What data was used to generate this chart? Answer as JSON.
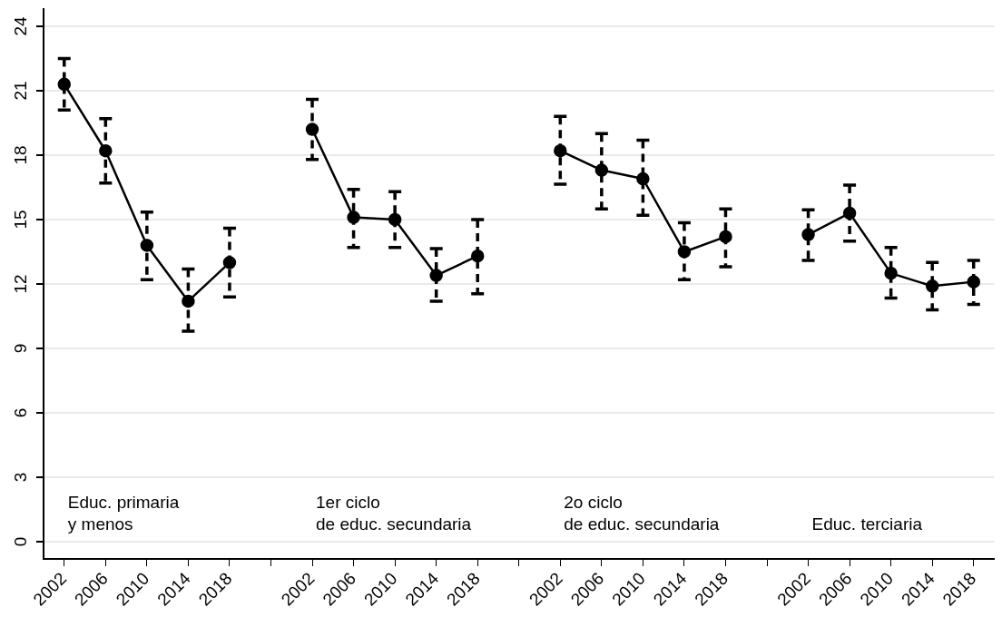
{
  "chart_data": {
    "type": "line",
    "categories": [
      "2002",
      "2006",
      "2010",
      "2014",
      "2018",
      null,
      "2002",
      "2006",
      "2010",
      "2014",
      "2018",
      null,
      "2002",
      "2006",
      "2010",
      "2014",
      "2018",
      null,
      "2002",
      "2006",
      "2010",
      "2014",
      "2018"
    ],
    "series": [
      {
        "color": "#000000",
        "values": [
          21.3,
          18.2,
          13.8,
          11.2,
          13.0,
          null,
          19.2,
          15.1,
          15.0,
          12.4,
          13.3,
          null,
          18.2,
          17.3,
          16.9,
          13.5,
          14.2,
          null,
          14.3,
          15.3,
          12.5,
          11.9,
          12.1
        ],
        "errors": [
          [
            20.1,
            22.5
          ],
          [
            16.7,
            19.7
          ],
          [
            12.2,
            15.35
          ],
          [
            9.8,
            12.7
          ],
          [
            11.4,
            14.6
          ],
          null,
          [
            17.8,
            20.6
          ],
          [
            13.7,
            16.4
          ],
          [
            13.7,
            16.3
          ],
          [
            11.2,
            13.65
          ],
          [
            11.55,
            15.0
          ],
          null,
          [
            16.65,
            19.8
          ],
          [
            15.5,
            19.0
          ],
          [
            15.2,
            18.7
          ],
          [
            12.2,
            14.85
          ],
          [
            12.8,
            15.5
          ],
          null,
          [
            13.1,
            15.45
          ],
          [
            14.0,
            16.6
          ],
          [
            11.35,
            13.7
          ],
          [
            10.8,
            13.0
          ],
          [
            11.05,
            13.1
          ]
        ]
      }
    ],
    "ylim": [
      -0.8,
      24.8
    ],
    "yticks": [
      0,
      3,
      6,
      9,
      12,
      15,
      18,
      21,
      24
    ],
    "grid": "y",
    "legend": false,
    "marker": "circle",
    "line_style": "solid",
    "annotations": [
      "Educ. primaria\ny menos",
      "1er ciclo\nde educ. secundaria",
      "2o ciclo\nde educ. secundaria",
      "Educ. terciaria"
    ]
  }
}
